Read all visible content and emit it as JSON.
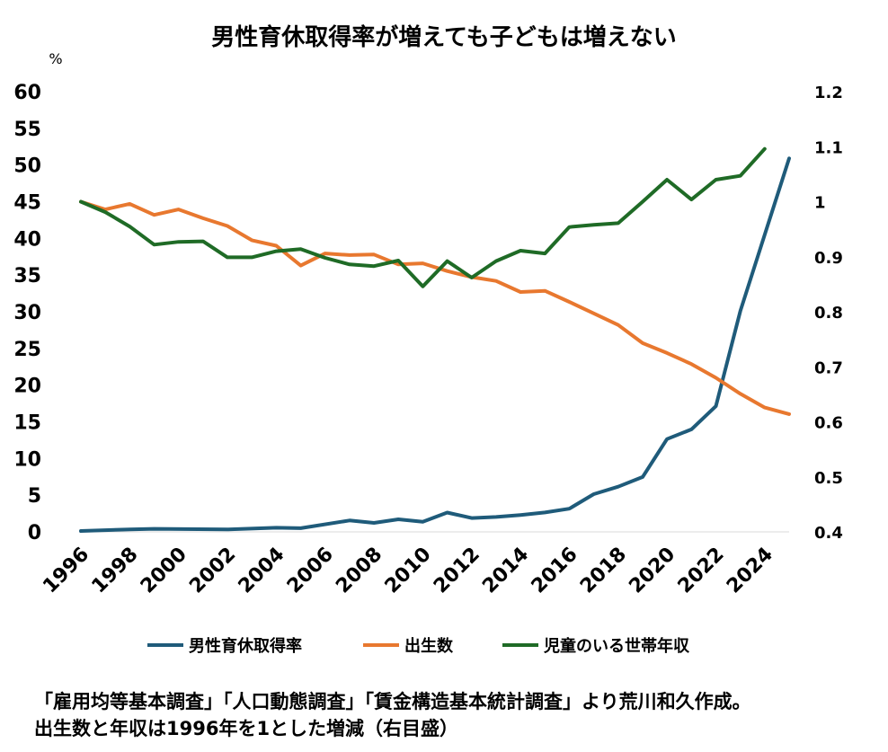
{
  "chart_data": {
    "type": "line",
    "title": "男性育休取得率が増えても子どもは増えない",
    "y_unit": "%",
    "x_ticks": [
      "1996",
      "1998",
      "2000",
      "2002",
      "2004",
      "2006",
      "2008",
      "2010",
      "2012",
      "2014",
      "2016",
      "2018",
      "2020",
      "2022",
      "2024"
    ],
    "x": [
      1996,
      1997,
      1998,
      1999,
      2000,
      2001,
      2002,
      2003,
      2004,
      2005,
      2006,
      2007,
      2008,
      2009,
      2010,
      2011,
      2012,
      2013,
      2014,
      2015,
      2016,
      2017,
      2018,
      2019,
      2020,
      2021,
      2022,
      2023,
      2024,
      2025
    ],
    "ylim": [
      0,
      60
    ],
    "y_ticks": [
      "60",
      "55",
      "50",
      "45",
      "40",
      "35",
      "30",
      "25",
      "20",
      "15",
      "10",
      "5",
      "0"
    ],
    "y2lim": [
      0.4,
      1.2
    ],
    "y2_ticks": [
      "1.2",
      "1.1",
      "1",
      "0.9",
      "0.8",
      "0.7",
      "0.6",
      "0.5",
      "0.4"
    ],
    "series": [
      {
        "name": "男性育休取得率",
        "axis": "left",
        "color": "#1f5b7a",
        "x": [
          1996,
          1998,
          1999,
          2002,
          2004,
          2005,
          2007,
          2008,
          2009,
          2010,
          2011,
          2012,
          2013,
          2014,
          2015,
          2016,
          2017,
          2018,
          2019,
          2020,
          2021,
          2022,
          2023,
          2024,
          2025
        ],
        "values": [
          0.12,
          0.34,
          0.42,
          0.33,
          0.56,
          0.5,
          1.56,
          1.23,
          1.72,
          1.38,
          2.63,
          1.89,
          2.03,
          2.3,
          2.65,
          3.16,
          5.14,
          6.16,
          7.48,
          12.65,
          13.97,
          17.13,
          30.1,
          40.5,
          50.9
        ]
      },
      {
        "name": "出生数",
        "axis": "right",
        "color": "#e8782f",
        "x": [
          1996,
          1997,
          1998,
          1999,
          2000,
          2001,
          2002,
          2003,
          2004,
          2005,
          2006,
          2007,
          2008,
          2009,
          2010,
          2011,
          2012,
          2013,
          2014,
          2015,
          2016,
          2017,
          2018,
          2019,
          2020,
          2021,
          2022,
          2023,
          2024,
          2025
        ],
        "values": [
          1.0,
          0.986,
          0.996,
          0.976,
          0.986,
          0.97,
          0.956,
          0.93,
          0.92,
          0.884,
          0.906,
          0.903,
          0.904,
          0.886,
          0.888,
          0.874,
          0.863,
          0.856,
          0.836,
          0.838,
          0.818,
          0.797,
          0.776,
          0.743,
          0.725,
          0.705,
          0.68,
          0.651,
          0.626,
          0.614
        ]
      },
      {
        "name": "児童のいる世帯年収",
        "axis": "right",
        "color": "#1f6b26",
        "x": [
          1996,
          1997,
          1998,
          1999,
          2000,
          2001,
          2002,
          2003,
          2004,
          2005,
          2006,
          2007,
          2008,
          2009,
          2010,
          2011,
          2012,
          2013,
          2014,
          2015,
          2016,
          2017,
          2018,
          2019,
          2020,
          2021,
          2022,
          2023,
          2024
        ],
        "values": [
          1.0,
          0.981,
          0.955,
          0.922,
          0.927,
          0.928,
          0.899,
          0.899,
          0.91,
          0.914,
          0.898,
          0.886,
          0.883,
          0.893,
          0.846,
          0.892,
          0.862,
          0.892,
          0.911,
          0.906,
          0.954,
          0.958,
          0.961,
          1.0,
          1.04,
          1.004,
          1.04,
          1.047,
          1.096
        ]
      }
    ],
    "legend_position": "bottom",
    "grid": false
  },
  "note": {
    "line1": "「雇用均等基本調査」「人口動態調査」「賃金構造基本統計調査」より荒川和久作成。",
    "line2": "出生数と年収は1996年を1とした増減（右目盛）"
  }
}
